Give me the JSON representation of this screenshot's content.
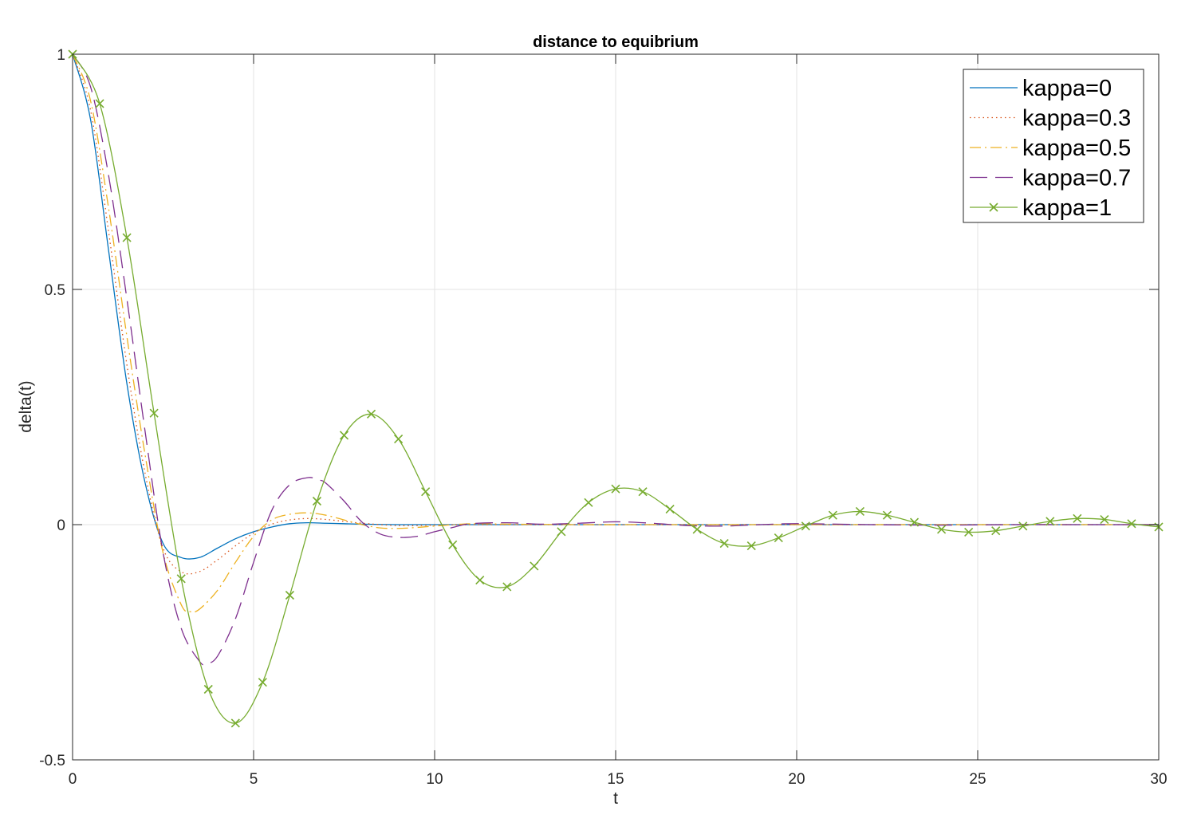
{
  "chart_data": {
    "type": "line",
    "title": "distance to equibrium",
    "xlabel": "t",
    "ylabel": "delta(t)",
    "xlim": [
      0,
      30
    ],
    "ylim": [
      -0.5,
      1
    ],
    "xticks": [
      0,
      5,
      10,
      15,
      20,
      25,
      30
    ],
    "xtick_labels": [
      "0",
      "5",
      "10",
      "15",
      "20",
      "25",
      "30"
    ],
    "yticks": [
      -0.5,
      0,
      0.5,
      1
    ],
    "ytick_labels": [
      "-0.5",
      "0",
      "0.5",
      "1"
    ],
    "grid": true,
    "legend_position": "top-right",
    "series": [
      {
        "name": "kappa=0",
        "color": "#0072BD",
        "style": "solid",
        "marker": "none",
        "x": [
          0,
          0.5,
          1,
          1.5,
          2,
          2.5,
          3,
          3.5,
          4,
          4.5,
          5,
          5.5,
          6,
          6.5,
          7,
          7.5,
          8,
          9,
          10,
          11,
          12,
          15,
          20,
          25,
          30
        ],
        "y": [
          1,
          0.86,
          0.58,
          0.3,
          0.09,
          -0.04,
          -0.07,
          -0.07,
          -0.05,
          -0.03,
          -0.015,
          -0.005,
          0.002,
          0.004,
          0.003,
          0.002,
          0.001,
          0,
          0,
          0,
          0,
          0,
          0,
          0,
          0
        ]
      },
      {
        "name": "kappa=0.3",
        "color": "#D95319",
        "style": "dotted",
        "marker": "none",
        "x": [
          0,
          0.5,
          1,
          1.5,
          2,
          2.5,
          3,
          3.5,
          4,
          4.5,
          5,
          5.5,
          6,
          6.5,
          7,
          7.5,
          8,
          9,
          10,
          11,
          12,
          15,
          20,
          25,
          30
        ],
        "y": [
          1,
          0.88,
          0.62,
          0.34,
          0.11,
          -0.05,
          -0.1,
          -0.1,
          -0.075,
          -0.045,
          -0.018,
          0.001,
          0.01,
          0.013,
          0.011,
          0.007,
          0.003,
          -0.002,
          -0.001,
          0,
          0,
          0,
          0,
          0,
          0
        ]
      },
      {
        "name": "kappa=0.5",
        "color": "#EDB120",
        "style": "dashdot",
        "marker": "none",
        "x": [
          0,
          0.5,
          1,
          1.5,
          2,
          2.5,
          3,
          3.25,
          3.5,
          4,
          4.5,
          5,
          5.5,
          6,
          6.5,
          7,
          7.5,
          8,
          8.5,
          9,
          9.5,
          10,
          11,
          12,
          14,
          16,
          18,
          20,
          25,
          30
        ],
        "y": [
          1,
          0.9,
          0.67,
          0.4,
          0.15,
          -0.06,
          -0.17,
          -0.185,
          -0.18,
          -0.14,
          -0.08,
          -0.025,
          0.01,
          0.022,
          0.025,
          0.02,
          0.01,
          0,
          -0.007,
          -0.008,
          -0.006,
          -0.003,
          0.002,
          0.001,
          0,
          0,
          0,
          0,
          0,
          0
        ]
      },
      {
        "name": "kappa=0.7",
        "color": "#7E2F8E",
        "style": "dashed",
        "marker": "none",
        "x": [
          0,
          0.5,
          1,
          1.5,
          2,
          2.5,
          3,
          3.5,
          3.7,
          4,
          4.5,
          5,
          5.5,
          6,
          6.5,
          6.8,
          7,
          7.5,
          8,
          8.5,
          9,
          9.5,
          10,
          10.5,
          11,
          12,
          13,
          14,
          15,
          16,
          17,
          18,
          19,
          20,
          22,
          24,
          26,
          28,
          30
        ],
        "y": [
          1,
          0.93,
          0.74,
          0.48,
          0.2,
          -0.06,
          -0.22,
          -0.29,
          -0.295,
          -0.28,
          -0.2,
          -0.08,
          0.03,
          0.085,
          0.1,
          0.095,
          0.088,
          0.05,
          0.005,
          -0.02,
          -0.027,
          -0.025,
          -0.015,
          -0.006,
          0.002,
          0.004,
          0.001,
          0.003,
          0.006,
          0.003,
          -0.002,
          -0.003,
          0,
          0.002,
          0,
          -0.001,
          0,
          0,
          0
        ]
      },
      {
        "name": "kappa=1",
        "color": "#77AC30",
        "style": "solid",
        "marker": "x",
        "x": [
          0,
          0.75,
          1.5,
          2.25,
          3,
          3.75,
          4.5,
          5.25,
          6,
          6.75,
          7.5,
          8.25,
          9,
          9.75,
          10.5,
          11.25,
          12,
          12.75,
          13.5,
          14.25,
          15,
          15.75,
          16.5,
          17.25,
          18,
          18.75,
          19.5,
          20.25,
          21,
          21.75,
          22.5,
          23.25,
          24,
          24.75,
          25.5,
          26.25,
          27,
          27.75,
          28.5,
          29.25,
          30
        ],
        "y": [
          1,
          0.895,
          0.61,
          0.237,
          -0.115,
          -0.35,
          -0.422,
          -0.335,
          -0.15,
          0.05,
          0.19,
          0.235,
          0.182,
          0.07,
          -0.043,
          -0.118,
          -0.132,
          -0.088,
          -0.015,
          0.047,
          0.076,
          0.07,
          0.033,
          -0.01,
          -0.04,
          -0.045,
          -0.028,
          -0.003,
          0.02,
          0.028,
          0.02,
          0.005,
          -0.01,
          -0.016,
          -0.013,
          -0.003,
          0.007,
          0.013,
          0.011,
          0.002,
          -0.005
        ]
      }
    ]
  }
}
